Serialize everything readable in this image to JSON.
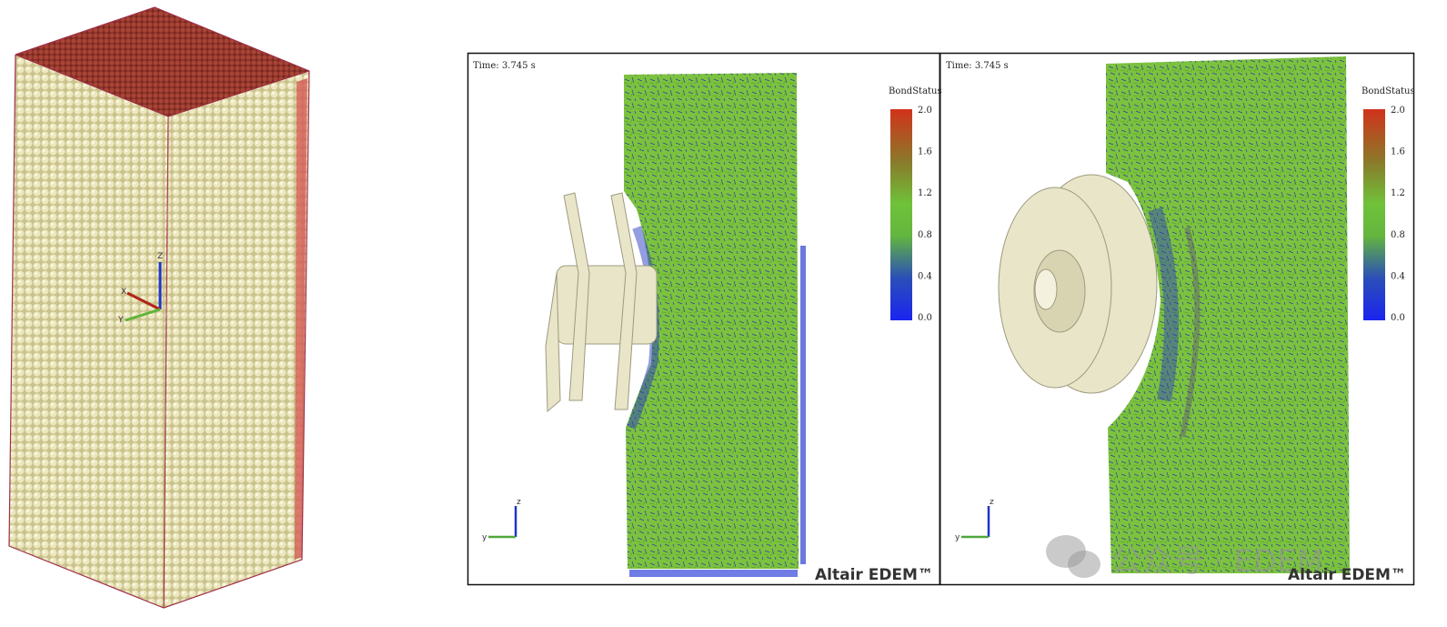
{
  "left_view": {
    "axes": {
      "z": "Z",
      "x": "X",
      "y": "Y"
    }
  },
  "panels": [
    {
      "time": "Time: 3.745 s",
      "legend_title": "BondStatus",
      "legend_ticks": [
        "2.0",
        "1.6",
        "1.2",
        "0.8",
        "0.4",
        "0.0"
      ],
      "axes": {
        "z": "z",
        "y": "y"
      },
      "brand": "Altair EDEM™"
    },
    {
      "time": "Time: 3.745 s",
      "legend_title": "BondStatus",
      "legend_ticks": [
        "2.0",
        "1.6",
        "1.2",
        "0.8",
        "0.4",
        "0.0"
      ],
      "axes": {
        "z": "z",
        "y": "y"
      },
      "brand": "Altair EDEM™"
    }
  ],
  "watermark": "公众号 · EDEM"
}
